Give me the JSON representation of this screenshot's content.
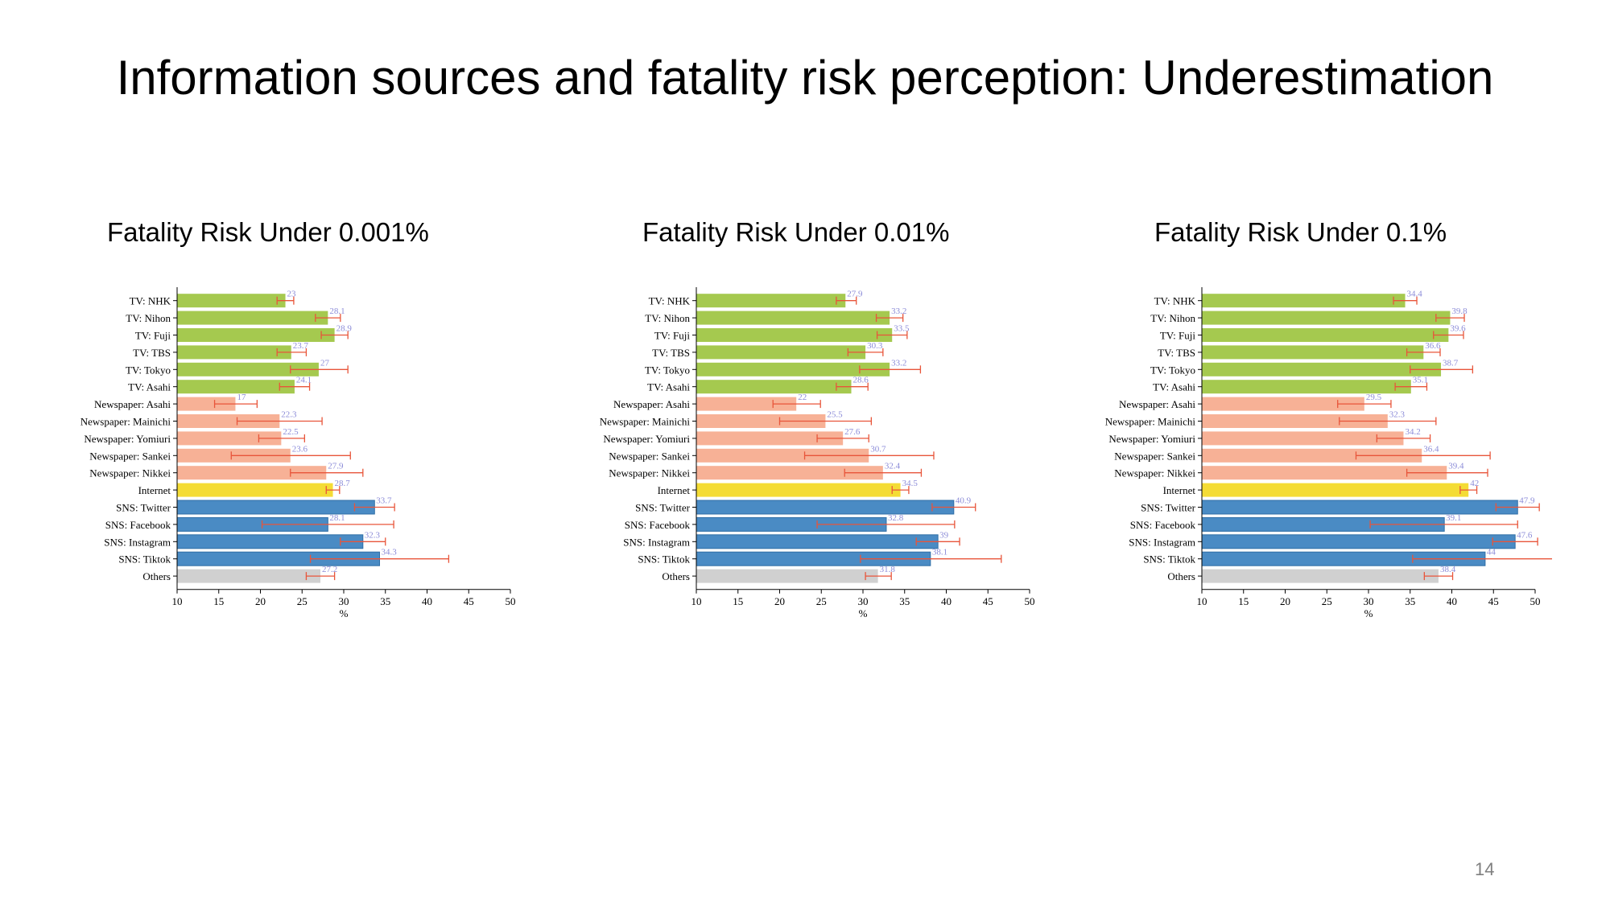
{
  "slide": {
    "title": "Information sources and fatality risk perception: Underestimation",
    "page_number": "14"
  },
  "colors": {
    "tv": "#a5c94f",
    "newspaper": "#f7b196",
    "internet": "#f4dc35",
    "sns": "#4a8bc4",
    "others": "#d0d0d0",
    "error_bar": "#e8553a",
    "data_label": "#8c8cd8"
  },
  "chart_data": [
    {
      "type": "bar",
      "title": "Fatality Risk Under 0.001%",
      "xlabel": "%",
      "xlim": [
        10,
        50
      ],
      "xticks": [
        10,
        15,
        20,
        25,
        30,
        35,
        40,
        45,
        50
      ],
      "categories": [
        "TV: NHK",
        "TV: Nihon",
        "TV: Fuji",
        "TV: TBS",
        "TV: Tokyo",
        "TV: Asahi",
        "Newspaper: Asahi",
        "Newspaper: Mainichi",
        "Newspaper: Yomiuri",
        "Newspaper: Sankei",
        "Newspaper: Nikkei",
        "Internet",
        "SNS: Twitter",
        "SNS: Facebook",
        "SNS: Instagram",
        "SNS: Tiktok",
        "Others"
      ],
      "groups": [
        "tv",
        "tv",
        "tv",
        "tv",
        "tv",
        "tv",
        "newspaper",
        "newspaper",
        "newspaper",
        "newspaper",
        "newspaper",
        "internet",
        "sns",
        "sns",
        "sns",
        "sns",
        "others"
      ],
      "values": [
        23,
        28.1,
        28.9,
        23.7,
        27,
        24.1,
        17,
        22.3,
        22.5,
        23.6,
        27.9,
        28.7,
        33.7,
        28.1,
        32.3,
        34.3,
        27.2
      ],
      "err_low": [
        22.0,
        26.6,
        27.3,
        22.0,
        23.6,
        22.3,
        14.5,
        17.2,
        19.8,
        16.5,
        23.6,
        27.9,
        31.3,
        20.2,
        29.6,
        26.0,
        25.5
      ],
      "err_high": [
        24.0,
        29.6,
        30.5,
        25.5,
        30.5,
        25.9,
        19.6,
        27.4,
        25.3,
        30.8,
        32.3,
        29.5,
        36.1,
        36.0,
        35.0,
        42.6,
        28.9
      ]
    },
    {
      "type": "bar",
      "title": "Fatality Risk Under 0.01%",
      "xlabel": "%",
      "xlim": [
        10,
        50
      ],
      "xticks": [
        10,
        15,
        20,
        25,
        30,
        35,
        40,
        45,
        50
      ],
      "categories": [
        "TV: NHK",
        "TV: Nihon",
        "TV: Fuji",
        "TV: TBS",
        "TV: Tokyo",
        "TV: Asahi",
        "Newspaper: Asahi",
        "Newspaper: Mainichi",
        "Newspaper: Yomiuri",
        "Newspaper: Sankei",
        "Newspaper: Nikkei",
        "Internet",
        "SNS: Twitter",
        "SNS: Facebook",
        "SNS: Instagram",
        "SNS: Tiktok",
        "Others"
      ],
      "groups": [
        "tv",
        "tv",
        "tv",
        "tv",
        "tv",
        "tv",
        "newspaper",
        "newspaper",
        "newspaper",
        "newspaper",
        "newspaper",
        "internet",
        "sns",
        "sns",
        "sns",
        "sns",
        "others"
      ],
      "values": [
        27.9,
        33.2,
        33.5,
        30.3,
        33.2,
        28.6,
        22,
        25.5,
        27.6,
        30.7,
        32.4,
        34.5,
        40.9,
        32.8,
        39,
        38.1,
        31.8
      ],
      "err_low": [
        26.8,
        31.6,
        31.7,
        28.2,
        29.6,
        26.8,
        19.2,
        20.0,
        24.5,
        23.0,
        27.8,
        33.5,
        38.3,
        24.5,
        36.4,
        29.7,
        30.3
      ],
      "err_high": [
        29.2,
        34.8,
        35.3,
        32.4,
        36.9,
        30.6,
        24.9,
        31.0,
        30.7,
        38.5,
        37.0,
        35.5,
        43.5,
        41.0,
        41.6,
        46.6,
        33.4
      ]
    },
    {
      "type": "bar",
      "title": "Fatality Risk Under 0.1%",
      "xlabel": "%",
      "xlim": [
        10,
        50
      ],
      "xticks": [
        10,
        15,
        20,
        25,
        30,
        35,
        40,
        45,
        50
      ],
      "categories": [
        "TV: NHK",
        "TV: Nihon",
        "TV: Fuji",
        "TV: TBS",
        "TV: Tokyo",
        "TV: Asahi",
        "Newspaper: Asahi",
        "Newspaper: Mainichi",
        "Newspaper: Yomiuri",
        "Newspaper: Sankei",
        "Newspaper: Nikkei",
        "Internet",
        "SNS: Twitter",
        "SNS: Facebook",
        "SNS: Instagram",
        "SNS: Tiktok",
        "Others"
      ],
      "groups": [
        "tv",
        "tv",
        "tv",
        "tv",
        "tv",
        "tv",
        "newspaper",
        "newspaper",
        "newspaper",
        "newspaper",
        "newspaper",
        "internet",
        "sns",
        "sns",
        "sns",
        "sns",
        "others"
      ],
      "values": [
        34.4,
        39.8,
        39.6,
        36.6,
        38.7,
        35.1,
        29.5,
        32.3,
        34.2,
        36.4,
        39.4,
        42,
        47.9,
        39.1,
        47.6,
        44,
        38.4
      ],
      "err_low": [
        33.0,
        38.1,
        37.8,
        34.6,
        35.0,
        33.2,
        26.3,
        26.5,
        31.0,
        28.5,
        34.6,
        41.0,
        45.3,
        30.2,
        44.9,
        35.3,
        36.7
      ],
      "err_high": [
        35.8,
        41.5,
        41.4,
        38.6,
        42.5,
        37.0,
        32.7,
        38.1,
        37.4,
        44.6,
        44.3,
        43.0,
        50.5,
        47.9,
        50.3,
        52.7,
        40.1
      ]
    }
  ]
}
